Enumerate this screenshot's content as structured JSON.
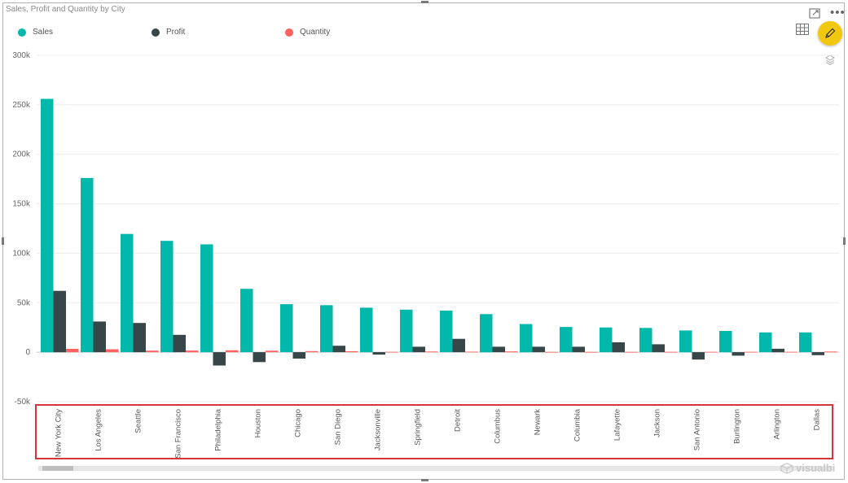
{
  "chart_data": {
    "type": "bar",
    "title": "Sales, Profit and Quantity by City",
    "categories": [
      "New York City",
      "Los Angeles",
      "Seattle",
      "San Francisco",
      "Philadelphia",
      "Houston",
      "Chicago",
      "San Diego",
      "Jacksonville",
      "Springfield",
      "Detroit",
      "Columbus",
      "Newark",
      "Columbia",
      "Lafayette",
      "Jackson",
      "San Antonio",
      "Burlington",
      "Arlington",
      "Dallas"
    ],
    "series": [
      {
        "name": "Sales",
        "color": "#01b8aa",
        "values": [
          256000,
          176000,
          119500,
          112500,
          109000,
          64000,
          48500,
          47500,
          45000,
          43000,
          42000,
          38500,
          28500,
          25500,
          25000,
          24500,
          22000,
          21500,
          20000,
          20000
        ]
      },
      {
        "name": "Profit",
        "color": "#374649",
        "values": [
          62000,
          31000,
          29500,
          17500,
          -13500,
          -10000,
          -6500,
          6500,
          -2500,
          5500,
          13500,
          5500,
          5500,
          5500,
          10000,
          8000,
          -7500,
          -3500,
          3500,
          -3000
        ]
      },
      {
        "name": "Quantity",
        "color": "#fd625e",
        "values": [
          3400,
          2900,
          1600,
          1700,
          1900,
          1500,
          1100,
          1000,
          400,
          700,
          500,
          800,
          300,
          300,
          300,
          400,
          400,
          400,
          400,
          700
        ]
      }
    ],
    "yticks": [
      300000,
      250000,
      200000,
      150000,
      100000,
      50000,
      0,
      -50000
    ],
    "ytick_labels": [
      "300k",
      "250k",
      "200k",
      "150k",
      "100k",
      "50k",
      "0",
      "-50k"
    ],
    "ylim": [
      -50000,
      300000
    ],
    "grid": true,
    "legend_position": "top-left"
  },
  "icons": {
    "focus": "focus-mode-icon",
    "more": "more-options-icon",
    "table": "table-icon",
    "edit": "pencil-icon",
    "stack": "stack-icon"
  },
  "watermark": "visualbi"
}
